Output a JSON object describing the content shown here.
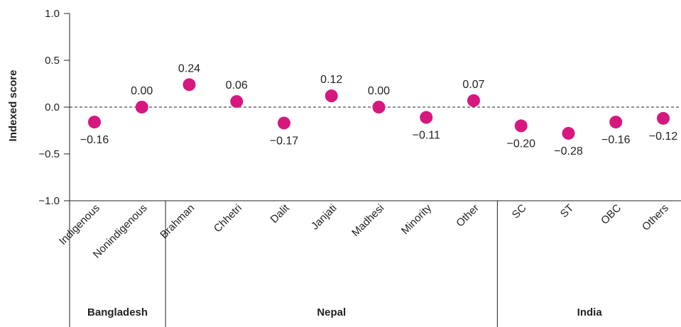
{
  "chart_data": {
    "type": "scatter",
    "ylabel": "Indexed score",
    "ylim": [
      -1.0,
      1.0
    ],
    "yticks": [
      "1.0",
      "0.5",
      "0.0",
      "-0.5",
      "-1.0"
    ],
    "ytick_values": [
      1.0,
      0.5,
      0.0,
      -0.5,
      -1.0
    ],
    "grid": false,
    "zero_reference_line": "dashed",
    "marker_color": "#d6187e",
    "categories": [
      "Indigenous",
      "Nonindigenous",
      "Brahman",
      "Chhetri",
      "Dalit",
      "Janjati",
      "Madhesi",
      "Minority",
      "Other",
      "SC",
      "ST",
      "OBC",
      "Others"
    ],
    "values": [
      -0.16,
      0.0,
      0.24,
      0.06,
      -0.17,
      0.12,
      0.0,
      -0.11,
      0.07,
      -0.2,
      -0.28,
      -0.16,
      -0.12
    ],
    "value_labels": [
      "−0.16",
      "0.00",
      "0.24",
      "0.06",
      "−0.17",
      "0.12",
      "0.00",
      "−0.11",
      "0.07",
      "−0.20",
      "−0.28",
      "−0.16",
      "−0.12"
    ],
    "groups": [
      {
        "name": "Bangladesh",
        "start": 0,
        "end": 1
      },
      {
        "name": "Nepal",
        "start": 2,
        "end": 8
      },
      {
        "name": "India",
        "start": 9,
        "end": 12
      }
    ]
  }
}
